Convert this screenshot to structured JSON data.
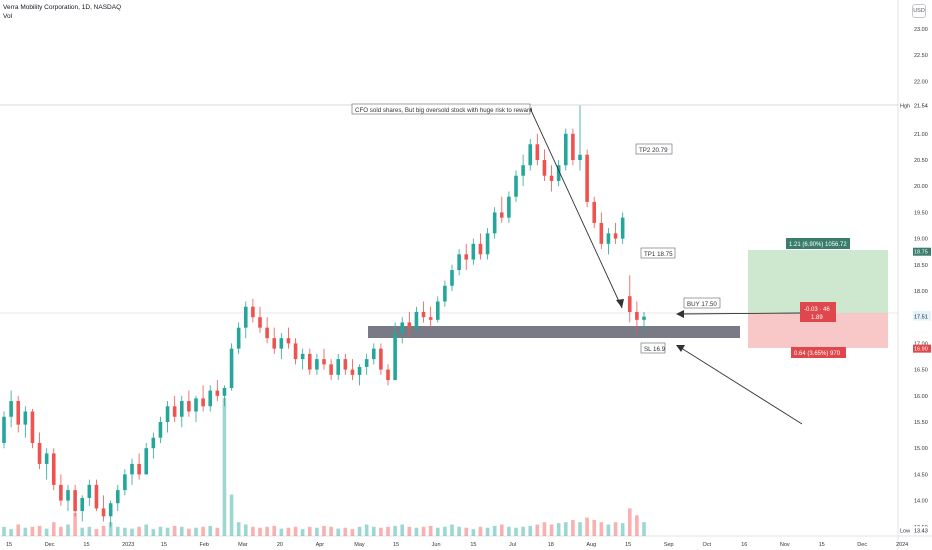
{
  "header": {
    "title": "Verra Mobility Corporation, 1D, NASDAQ",
    "vol_label": "Vol",
    "currency": "USD"
  },
  "colors": {
    "up": "#26a69a",
    "down": "#ef5350",
    "box_bg": "#ffffff",
    "support_zone": "#787b86",
    "reward_zone": "#c8e6c9",
    "risk_zone": "#f7c1c1",
    "reward_label": "#3a7d6b",
    "risk_label": "#e0474c"
  },
  "chart_data": {
    "type": "candlestick",
    "symbol": "Verra Mobility Corporation",
    "interval": "1D",
    "exchange": "NASDAQ",
    "ylim": [
      13.4,
      23.5
    ],
    "y_ticks": [
      "23.00",
      "22.50",
      "22.00",
      "21.50",
      "21.00",
      "20.50",
      "20.00",
      "19.50",
      "19.00",
      "18.50",
      "18.00",
      "17.50",
      "17.00",
      "16.50",
      "16.00",
      "15.50",
      "15.00",
      "14.50",
      "14.00",
      "13.50"
    ],
    "x_ticks": [
      "15",
      "Dec",
      "15",
      "2023",
      "15",
      "Feb",
      "Mar",
      "20",
      "Apr",
      "May",
      "15",
      "Jun",
      "15",
      "Jul",
      "18",
      "Aug",
      "15",
      "Sep",
      "Oct",
      "16",
      "Nov",
      "15",
      "Dec",
      "2024"
    ],
    "price_tags": [
      {
        "label": "Hgh",
        "value": "21.54"
      },
      {
        "label": "",
        "value": "18.75"
      },
      {
        "label": "",
        "value": "17.54"
      },
      {
        "label": "",
        "value": "17.51"
      },
      {
        "label": "",
        "value": "16.90"
      },
      {
        "label": "Low",
        "value": "13.43"
      }
    ],
    "high": 21.54,
    "low": 13.43,
    "last_close": 17.51,
    "annotations": {
      "note": "CFO sold shares, But big oversold stock with huge risk to reward",
      "tp2": "TP2  20.79",
      "tp1": "TP1  18.75",
      "buy": "BUY  17.50",
      "sl": "SL  16.9",
      "reward": "1.21 (6.90%) 1056.72",
      "mid_line1": "-0.03 · 46",
      "mid_line2": "1.89",
      "risk": "0.64 (3.65%) 970"
    },
    "levels": {
      "tp2": 20.79,
      "tp1": 18.75,
      "buy": 17.5,
      "sl": 16.9,
      "support_zone": [
        16.97,
        17.18
      ]
    },
    "candles": [
      [
        15.1,
        15.7,
        15.0,
        15.6
      ],
      [
        15.6,
        16.1,
        15.4,
        15.9
      ],
      [
        15.9,
        16.0,
        15.3,
        15.45
      ],
      [
        15.45,
        15.8,
        15.2,
        15.7
      ],
      [
        15.7,
        15.75,
        15.0,
        15.1
      ],
      [
        15.1,
        15.3,
        14.6,
        14.7
      ],
      [
        14.7,
        15.0,
        14.4,
        14.9
      ],
      [
        14.9,
        15.0,
        14.2,
        14.3
      ],
      [
        14.3,
        14.5,
        13.9,
        14.0
      ],
      [
        14.0,
        14.3,
        13.8,
        14.2
      ],
      [
        14.2,
        14.3,
        13.7,
        13.8
      ],
      [
        13.8,
        14.1,
        13.6,
        14.05
      ],
      [
        14.05,
        14.4,
        13.9,
        14.3
      ],
      [
        14.3,
        14.4,
        13.8,
        13.85
      ],
      [
        13.85,
        14.1,
        13.6,
        13.7
      ],
      [
        13.7,
        14.0,
        13.5,
        13.95
      ],
      [
        13.95,
        14.3,
        13.8,
        14.2
      ],
      [
        14.2,
        14.6,
        14.1,
        14.5
      ],
      [
        14.5,
        14.8,
        14.3,
        14.7
      ],
      [
        14.7,
        14.9,
        14.4,
        14.5
      ],
      [
        14.5,
        15.1,
        14.5,
        15.0
      ],
      [
        15.0,
        15.3,
        14.8,
        15.2
      ],
      [
        15.2,
        15.6,
        15.1,
        15.5
      ],
      [
        15.5,
        15.9,
        15.3,
        15.8
      ],
      [
        15.8,
        16.0,
        15.5,
        15.6
      ],
      [
        15.6,
        16.0,
        15.4,
        15.9
      ],
      [
        15.9,
        16.1,
        15.6,
        15.7
      ],
      [
        15.7,
        16.0,
        15.5,
        15.95
      ],
      [
        15.95,
        16.2,
        15.7,
        15.8
      ],
      [
        15.8,
        16.2,
        15.7,
        16.1
      ],
      [
        16.1,
        16.3,
        15.9,
        16.0
      ],
      [
        16.0,
        16.2,
        15.8,
        16.15
      ],
      [
        16.15,
        17.0,
        16.1,
        16.9
      ],
      [
        16.9,
        17.4,
        16.8,
        17.3
      ],
      [
        17.3,
        17.8,
        17.1,
        17.7
      ],
      [
        17.7,
        17.85,
        17.4,
        17.5
      ],
      [
        17.5,
        17.7,
        17.2,
        17.3
      ],
      [
        17.3,
        17.5,
        17.0,
        17.1
      ],
      [
        17.1,
        17.3,
        16.8,
        16.9
      ],
      [
        16.9,
        17.2,
        16.7,
        17.1
      ],
      [
        17.1,
        17.3,
        16.9,
        17.0
      ],
      [
        17.0,
        17.1,
        16.6,
        16.7
      ],
      [
        16.7,
        16.9,
        16.5,
        16.8
      ],
      [
        16.8,
        16.9,
        16.4,
        16.5
      ],
      [
        16.5,
        16.8,
        16.4,
        16.7
      ],
      [
        16.7,
        16.9,
        16.5,
        16.6
      ],
      [
        16.6,
        16.7,
        16.3,
        16.4
      ],
      [
        16.4,
        16.8,
        16.3,
        16.7
      ],
      [
        16.7,
        16.8,
        16.4,
        16.5
      ],
      [
        16.5,
        16.7,
        16.3,
        16.4
      ],
      [
        16.4,
        16.6,
        16.2,
        16.55
      ],
      [
        16.55,
        16.8,
        16.4,
        16.7
      ],
      [
        16.7,
        17.0,
        16.6,
        16.9
      ],
      [
        16.9,
        17.0,
        16.4,
        16.5
      ],
      [
        16.5,
        16.6,
        16.2,
        16.3
      ],
      [
        16.3,
        17.4,
        16.3,
        17.2
      ],
      [
        17.2,
        17.5,
        17.0,
        17.4
      ],
      [
        17.4,
        17.6,
        17.1,
        17.3
      ],
      [
        17.3,
        17.7,
        17.2,
        17.6
      ],
      [
        17.6,
        17.8,
        17.4,
        17.5
      ],
      [
        17.5,
        17.7,
        17.3,
        17.45
      ],
      [
        17.45,
        17.9,
        17.4,
        17.8
      ],
      [
        17.8,
        18.2,
        17.7,
        18.1
      ],
      [
        18.1,
        18.5,
        18.0,
        18.4
      ],
      [
        18.4,
        18.8,
        18.3,
        18.7
      ],
      [
        18.7,
        18.9,
        18.4,
        18.6
      ],
      [
        18.6,
        19.0,
        18.5,
        18.9
      ],
      [
        18.9,
        19.1,
        18.6,
        18.7
      ],
      [
        18.7,
        19.2,
        18.6,
        19.1
      ],
      [
        19.1,
        19.6,
        19.0,
        19.5
      ],
      [
        19.5,
        19.8,
        19.3,
        19.4
      ],
      [
        19.4,
        19.9,
        19.3,
        19.8
      ],
      [
        19.8,
        20.3,
        19.7,
        20.2
      ],
      [
        20.2,
        20.6,
        20.0,
        20.4
      ],
      [
        20.4,
        20.9,
        20.3,
        20.8
      ],
      [
        20.8,
        21.0,
        20.4,
        20.5
      ],
      [
        20.5,
        20.7,
        20.1,
        20.2
      ],
      [
        20.2,
        20.4,
        19.9,
        20.1
      ],
      [
        20.1,
        20.5,
        20.0,
        20.4
      ],
      [
        20.4,
        21.1,
        20.3,
        21.0
      ],
      [
        21.0,
        21.1,
        20.4,
        20.5
      ],
      [
        20.5,
        21.54,
        20.3,
        20.6
      ],
      [
        20.6,
        20.7,
        19.6,
        19.7
      ],
      [
        19.7,
        19.8,
        19.2,
        19.3
      ],
      [
        19.3,
        19.5,
        18.8,
        18.9
      ],
      [
        18.9,
        19.2,
        18.7,
        19.1
      ],
      [
        19.1,
        19.3,
        18.9,
        19.0
      ],
      [
        19.0,
        19.5,
        18.9,
        19.4
      ],
      [
        17.9,
        18.3,
        17.4,
        17.6
      ],
      [
        17.6,
        17.8,
        17.2,
        17.45
      ],
      [
        17.45,
        17.6,
        17.2,
        17.51
      ]
    ],
    "volumes": [
      0.2,
      0.15,
      0.25,
      0.18,
      0.2,
      0.22,
      0.16,
      0.3,
      0.2,
      0.25,
      0.5,
      0.18,
      0.2,
      0.15,
      0.22,
      0.3,
      0.2,
      0.18,
      0.16,
      0.2,
      0.25,
      0.15,
      0.2,
      0.18,
      0.22,
      0.2,
      0.16,
      0.18,
      0.2,
      0.22,
      0.18,
      3.0,
      0.9,
      0.3,
      0.25,
      0.2,
      0.18,
      0.2,
      0.22,
      0.16,
      0.18,
      0.2,
      0.15,
      0.2,
      0.18,
      0.22,
      0.2,
      0.16,
      0.18,
      0.15,
      0.2,
      0.25,
      0.2,
      0.18,
      0.2,
      0.22,
      0.25,
      0.2,
      0.18,
      0.2,
      0.22,
      0.18,
      0.2,
      0.25,
      0.2,
      0.18,
      0.15,
      0.2,
      0.18,
      0.22,
      0.25,
      0.2,
      0.18,
      0.2,
      0.22,
      0.25,
      0.3,
      0.25,
      0.28,
      0.3,
      0.35,
      0.3,
      0.4,
      0.35,
      0.3,
      0.25,
      0.3,
      0.28,
      0.6,
      0.45,
      0.3
    ]
  }
}
